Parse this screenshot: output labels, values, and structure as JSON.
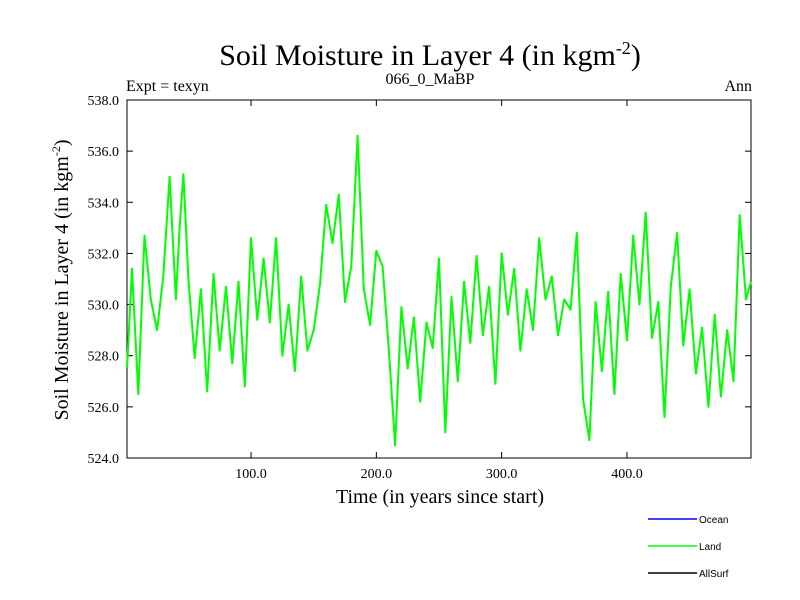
{
  "header": {
    "title": "Soil Moisture in Layer 4 (in kgm",
    "title_sup": "-2",
    "title_close": ")",
    "left_label": "Expt = texyn",
    "center_label": "066_0_MaBP",
    "right_label": "Ann"
  },
  "chart_data": {
    "type": "line",
    "title": "Soil Moisture in Layer 4 (in kgm-2)",
    "xlabel": "Time (in years since start)",
    "ylabel": "Soil Moisture in Layer 4 (in kgm-2)",
    "xlim": [
      1,
      499
    ],
    "ylim": [
      524.0,
      538.0
    ],
    "x_ticks": [
      100,
      200,
      300,
      400
    ],
    "x_tick_labels": [
      "100.0",
      "200.0",
      "300.0",
      "400.0"
    ],
    "y_ticks": [
      524,
      526,
      528,
      530,
      532,
      534,
      536,
      538
    ],
    "y_tick_labels": [
      "524.0",
      "526.0",
      "528.0",
      "530.0",
      "532.0",
      "534.0",
      "536.0",
      "538.0"
    ],
    "legend_position": "bottom-right",
    "legend": [
      {
        "name": "Ocean",
        "color": "#0000ff"
      },
      {
        "name": "Land",
        "color": "#00ff00"
      },
      {
        "name": "AllSurf",
        "color": "#000000"
      }
    ],
    "series": [
      {
        "name": "Land",
        "color": "#00ff00",
        "x": [
          1,
          5,
          10,
          15,
          20,
          25,
          30,
          35,
          40,
          43,
          46,
          50,
          55,
          60,
          65,
          70,
          75,
          80,
          85,
          90,
          95,
          100,
          105,
          110,
          115,
          120,
          125,
          130,
          135,
          140,
          145,
          150,
          155,
          160,
          165,
          170,
          175,
          180,
          185,
          190,
          195,
          200,
          205,
          210,
          215,
          220,
          225,
          230,
          235,
          240,
          245,
          250,
          255,
          260,
          265,
          270,
          275,
          280,
          285,
          290,
          295,
          300,
          305,
          310,
          315,
          320,
          325,
          330,
          335,
          340,
          345,
          350,
          355,
          360,
          365,
          370,
          375,
          380,
          385,
          390,
          395,
          400,
          405,
          410,
          415,
          420,
          425,
          430,
          435,
          440,
          445,
          450,
          455,
          460,
          465,
          470,
          475,
          480,
          485,
          490,
          495,
          499
        ],
        "y": [
          527.5,
          531.4,
          526.5,
          532.7,
          530.2,
          529.0,
          531.1,
          535.0,
          530.2,
          533.0,
          535.1,
          531.0,
          527.9,
          530.6,
          526.6,
          531.2,
          528.2,
          530.7,
          527.7,
          530.9,
          526.8,
          532.6,
          529.4,
          531.8,
          529.3,
          532.6,
          528.0,
          530.0,
          527.4,
          531.1,
          528.2,
          529.0,
          530.8,
          533.9,
          532.4,
          534.3,
          530.1,
          531.5,
          536.6,
          530.6,
          529.2,
          532.1,
          531.5,
          528.2,
          524.5,
          529.9,
          527.5,
          529.5,
          526.2,
          529.3,
          528.3,
          531.8,
          525.0,
          530.3,
          527.0,
          530.9,
          528.5,
          531.9,
          528.8,
          530.7,
          526.9,
          532.0,
          529.6,
          531.4,
          528.2,
          530.6,
          529.0,
          532.6,
          530.2,
          531.1,
          528.8,
          530.2,
          529.8,
          532.8,
          526.3,
          524.7,
          530.1,
          527.4,
          530.5,
          526.5,
          531.2,
          528.6,
          532.7,
          530.0,
          533.6,
          528.7,
          530.1,
          525.6,
          530.7,
          532.8,
          528.4,
          530.6,
          527.3,
          529.1,
          526.0,
          529.6,
          526.4,
          529.0,
          527.0,
          533.5,
          530.2,
          530.9
        ]
      }
    ]
  }
}
